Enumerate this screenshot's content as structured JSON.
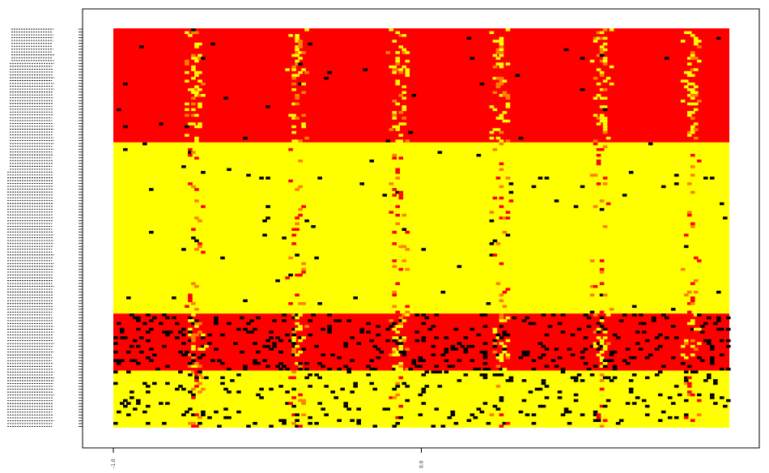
{
  "chart_data": {
    "type": "heatmap",
    "title": "",
    "xlabel": "",
    "ylabel": "",
    "x_tick_labels": [
      "-1.0",
      "0.0"
    ],
    "x_tick_values": [
      -1.0,
      0.0
    ],
    "xlim": [
      -1.0,
      1.0
    ],
    "n_columns": 190,
    "n_rows": 140,
    "palette": {
      "red": "#ff0000",
      "yellow": "#ffff00",
      "orange": "#ff7f00",
      "black": "#000000"
    },
    "row_bands": [
      {
        "base": "red",
        "rows": 40
      },
      {
        "base": "yellow",
        "rows": 60
      },
      {
        "base": "red",
        "rows": 20
      },
      {
        "base": "yellow",
        "rows": 20
      }
    ],
    "hotspot_column_fractions": [
      0.13,
      0.295,
      0.46,
      0.625,
      0.79,
      0.935
    ],
    "row_label_lines": 140,
    "legend": "none",
    "grid": false
  }
}
